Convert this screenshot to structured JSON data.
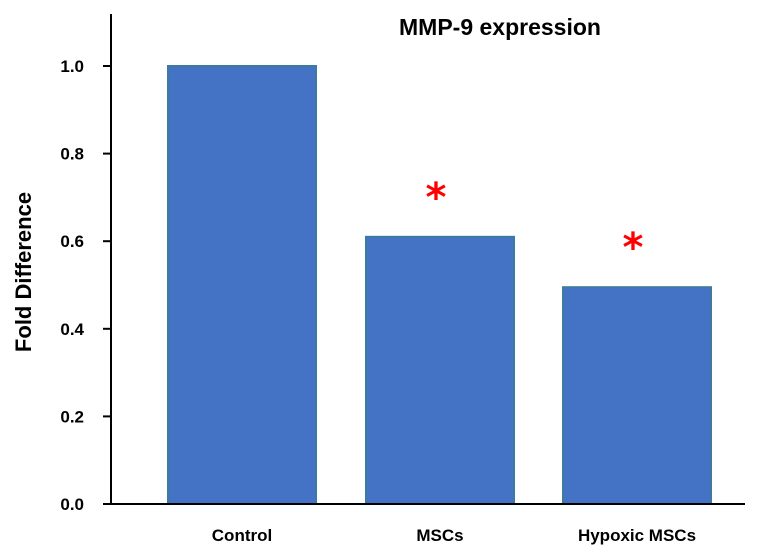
{
  "chart_data": {
    "type": "bar",
    "title": "MMP-9 expression",
    "xlabel": "",
    "ylabel": "Fold Difference",
    "categories": [
      "Control",
      "MSCs",
      "Hypoxic MSCs"
    ],
    "values": [
      1.0,
      0.61,
      0.495
    ],
    "significance": [
      "",
      "*",
      "*"
    ],
    "ylim": [
      0,
      1.1
    ],
    "yticks": [
      "0.0",
      "0.2",
      "0.4",
      "0.6",
      "0.8",
      "1.0"
    ],
    "grid": false,
    "bar_color": "#4472c4",
    "bar_edge_color": "#3d7a9e",
    "marker_color": "#ff0000"
  }
}
